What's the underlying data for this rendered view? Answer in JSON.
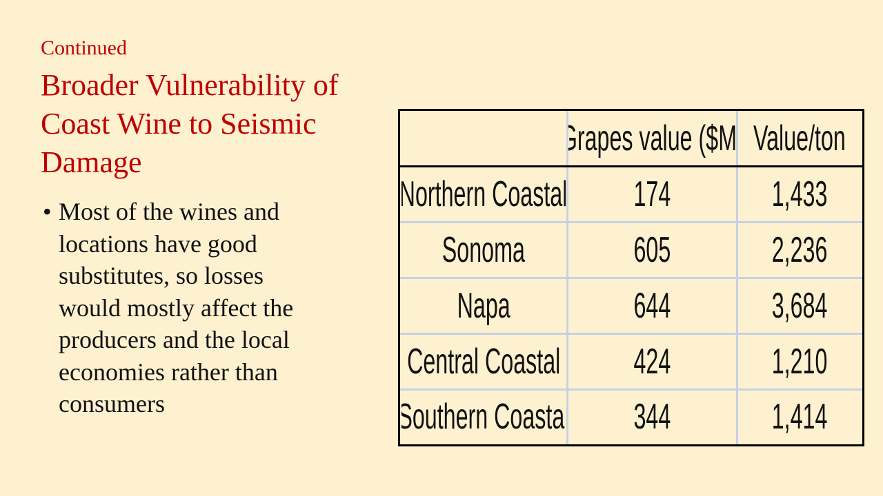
{
  "header": {
    "subtitle": "Continued",
    "title": [
      "Broader Vulnerability of",
      "Coast Wine to Seismic",
      "Damage"
    ]
  },
  "bullets": [
    {
      "lines": [
        "Most of the wines and",
        "locations have good",
        "substitutes, so losses",
        "would mostly affect the",
        "producers and the local",
        "economies rather than",
        "consumers"
      ]
    }
  ],
  "table": {
    "header": [
      "Grapes value ($M)",
      "Value/ton"
    ],
    "rows": [
      [
        "Northern Coastal",
        "174",
        "1,433"
      ],
      [
        "Sonoma",
        "605",
        "2,236"
      ],
      [
        "Napa",
        "644",
        "3,684"
      ],
      [
        "Central Coastal",
        "424",
        "1,210"
      ],
      [
        "Southern Coastal",
        "344",
        "1,414"
      ]
    ]
  }
}
